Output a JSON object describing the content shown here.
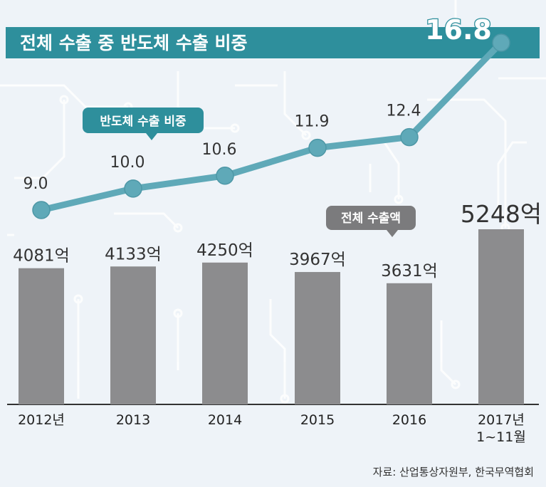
{
  "title": "전체 수출 중 반도체 수출 비중",
  "source": "자료: 산업통상자원부, 한국무역협회",
  "callouts": {
    "line": "반도체 수출 비중",
    "bar": "전체 수출액"
  },
  "colors": {
    "title_bg": "#2e8f9c",
    "line": "#5fa9b8",
    "bar": "#8c8c8e",
    "callout_line_bg": "#2e8f9c",
    "callout_bar_bg": "#7b7b7d"
  },
  "chart_data": {
    "type": "bar+line",
    "title": "전체 수출 중 반도체 수출 비중",
    "categories": [
      "2012년",
      "2013",
      "2014",
      "2015",
      "2016",
      "2017년 1~11월"
    ],
    "series": [
      {
        "name": "전체 수출액",
        "values": [
          4081,
          4133,
          4250,
          3967,
          3631,
          5248
        ],
        "labels": [
          "4081억",
          "4133억",
          "4250억",
          "3967억",
          "3631억",
          "5248억"
        ]
      },
      {
        "name": "반도체 수출 비중",
        "values": [
          9.0,
          10.0,
          10.6,
          11.9,
          12.4,
          16.8
        ],
        "labels": [
          "9.0",
          "10.0",
          "10.6",
          "11.9",
          "12.4",
          "16.8"
        ]
      }
    ]
  }
}
